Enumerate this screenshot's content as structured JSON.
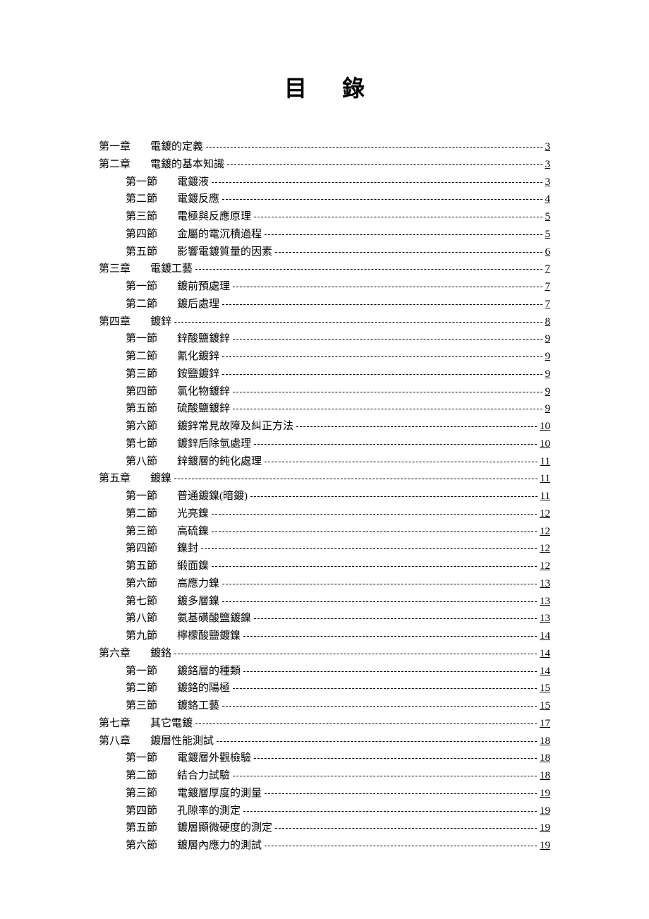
{
  "title": "目錄",
  "entries": [
    {
      "level": 0,
      "number": "第一章",
      "text": "電鍍的定義",
      "page": "3"
    },
    {
      "level": 0,
      "number": "第二章",
      "text": "電鍍的基本知識",
      "page": "3"
    },
    {
      "level": 1,
      "number": "第一節",
      "text": "電鍍液",
      "page": "3"
    },
    {
      "level": 1,
      "number": "第二節",
      "text": "電鍍反應",
      "page": "4"
    },
    {
      "level": 1,
      "number": "第三節",
      "text": "電極與反應原理",
      "page": "5"
    },
    {
      "level": 1,
      "number": "第四節",
      "text": "金屬的電沉積過程",
      "page": "5"
    },
    {
      "level": 1,
      "number": "第五節",
      "text": "影響電鍍質量的因素",
      "page": "6"
    },
    {
      "level": 0,
      "number": "第三章",
      "text": "電鍍工藝",
      "page": "7"
    },
    {
      "level": 1,
      "number": "第一節",
      "text": "鍍前預處理",
      "page": "7"
    },
    {
      "level": 1,
      "number": "第二節",
      "text": "鍍后處理",
      "page": "7"
    },
    {
      "level": 0,
      "number": "第四章",
      "text": "鍍鋅",
      "page": "8"
    },
    {
      "level": 1,
      "number": "第一節",
      "text": "鋅酸鹽鍍鋅",
      "page": "9"
    },
    {
      "level": 1,
      "number": "第二節",
      "text": "氰化鍍鋅",
      "page": "9"
    },
    {
      "level": 1,
      "number": "第三節",
      "text": "銨鹽鍍鋅",
      "page": "9"
    },
    {
      "level": 1,
      "number": "第四節",
      "text": "氯化物鍍鋅",
      "page": "9"
    },
    {
      "level": 1,
      "number": "第五節",
      "text": "硫酸鹽鍍鋅",
      "page": "9"
    },
    {
      "level": 1,
      "number": "第六節",
      "text": "鍍鋅常見故障及糾正方法",
      "page": "10"
    },
    {
      "level": 1,
      "number": "第七節",
      "text": "鍍鋅后除氫處理",
      "page": "10"
    },
    {
      "level": 1,
      "number": "第八節",
      "text": "鋅鍍層的鈍化處理",
      "page": "11"
    },
    {
      "level": 0,
      "number": "第五章",
      "text": "鍍鎳",
      "page": "11"
    },
    {
      "level": 1,
      "number": "第一節",
      "text": "普通鍍鎳(暗鍍)",
      "page": "11"
    },
    {
      "level": 1,
      "number": "第二節",
      "text": "光亮鎳",
      "page": "12"
    },
    {
      "level": 1,
      "number": "第三節",
      "text": "高硫鎳",
      "page": "12"
    },
    {
      "level": 1,
      "number": "第四節",
      "text": "鎳封",
      "page": "12"
    },
    {
      "level": 1,
      "number": "第五節",
      "text": "緞面鎳",
      "page": "12"
    },
    {
      "level": 1,
      "number": "第六節",
      "text": "高應力鎳",
      "page": "13"
    },
    {
      "level": 1,
      "number": "第七節",
      "text": "鍍多層鎳",
      "page": "13"
    },
    {
      "level": 1,
      "number": "第八節",
      "text": "氨基磺酸鹽鍍鎳",
      "page": "13"
    },
    {
      "level": 1,
      "number": "第九節",
      "text": "檸檬酸鹽鍍鎳",
      "page": "14"
    },
    {
      "level": 0,
      "number": "第六章",
      "text": "鍍鉻",
      "page": "14"
    },
    {
      "level": 1,
      "number": "第一節",
      "text": "鍍鉻層的種類",
      "page": "14"
    },
    {
      "level": 1,
      "number": "第二節",
      "text": "鍍鉻的陽極",
      "page": "15"
    },
    {
      "level": 1,
      "number": "第三節",
      "text": "鍍鉻工藝",
      "page": "15"
    },
    {
      "level": 0,
      "number": "第七章",
      "text": "其它電鍍",
      "page": "17"
    },
    {
      "level": 0,
      "number": "第八章",
      "text": "鍍層性能測試",
      "page": "18"
    },
    {
      "level": 1,
      "number": "第一節",
      "text": "電鍍層外觀檢驗",
      "page": "18"
    },
    {
      "level": 1,
      "number": "第二節",
      "text": "結合力試驗",
      "page": "18"
    },
    {
      "level": 1,
      "number": "第三節",
      "text": "電鍍層厚度的測量",
      "page": "19"
    },
    {
      "level": 1,
      "number": "第四節",
      "text": "孔隙率的測定",
      "page": "19"
    },
    {
      "level": 1,
      "number": "第五節",
      "text": "鍍層顯微硬度的測定",
      "page": "19"
    },
    {
      "level": 1,
      "number": "第六節",
      "text": "鍍層內應力的測試",
      "page": "19"
    }
  ],
  "colors": {
    "background": "#ffffff",
    "text": "#000000",
    "leader": "#000000"
  },
  "typography": {
    "title_fontsize": 32,
    "entry_fontsize": 15,
    "font_family": "SimSun"
  }
}
